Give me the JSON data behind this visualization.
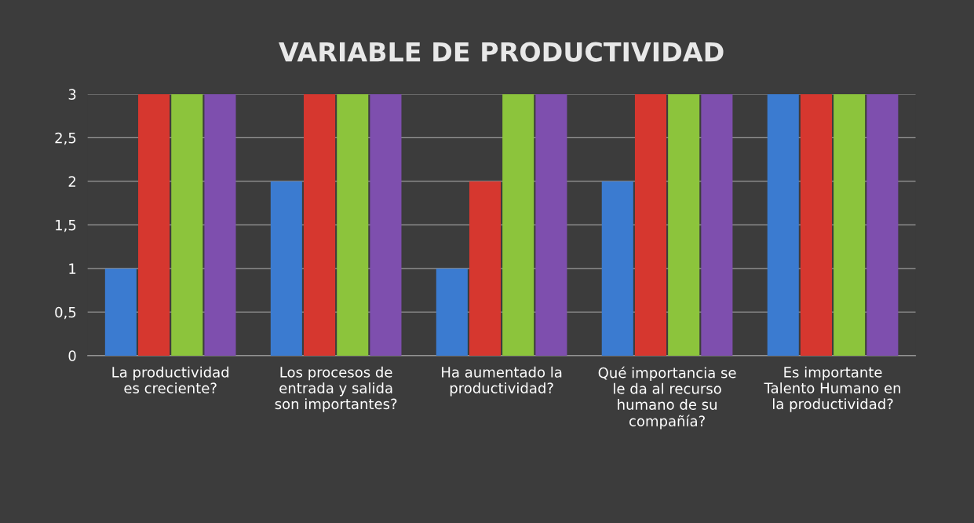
{
  "chart_data": {
    "type": "bar",
    "title": "VARIABLE DE PRODUCTIVIDAD",
    "categories": [
      "La productividad es creciente?",
      "Los procesos de entrada y salida son importantes?",
      "Ha aumentado la productividad?",
      "Qué importancia se le da al recurso humano de su compañía?",
      "Es importante Talento Humano en la productividad?"
    ],
    "series": [
      {
        "color": "#3b7bd0",
        "values": [
          1,
          2,
          1,
          2,
          3
        ]
      },
      {
        "color": "#d6372f",
        "values": [
          3,
          3,
          2,
          3,
          3
        ]
      },
      {
        "color": "#8cc43c",
        "values": [
          3,
          3,
          3,
          3,
          3
        ]
      },
      {
        "color": "#7e4fae",
        "values": [
          3,
          3,
          3,
          3,
          3
        ]
      }
    ],
    "ylim": [
      0,
      3
    ],
    "yticks": [
      0,
      {
        "value": 0.5,
        "label": "0,5"
      },
      1,
      {
        "value": 1.5,
        "label": "1,5"
      },
      2,
      {
        "value": 2.5,
        "label": "2,5"
      },
      3
    ],
    "grid": "y"
  }
}
